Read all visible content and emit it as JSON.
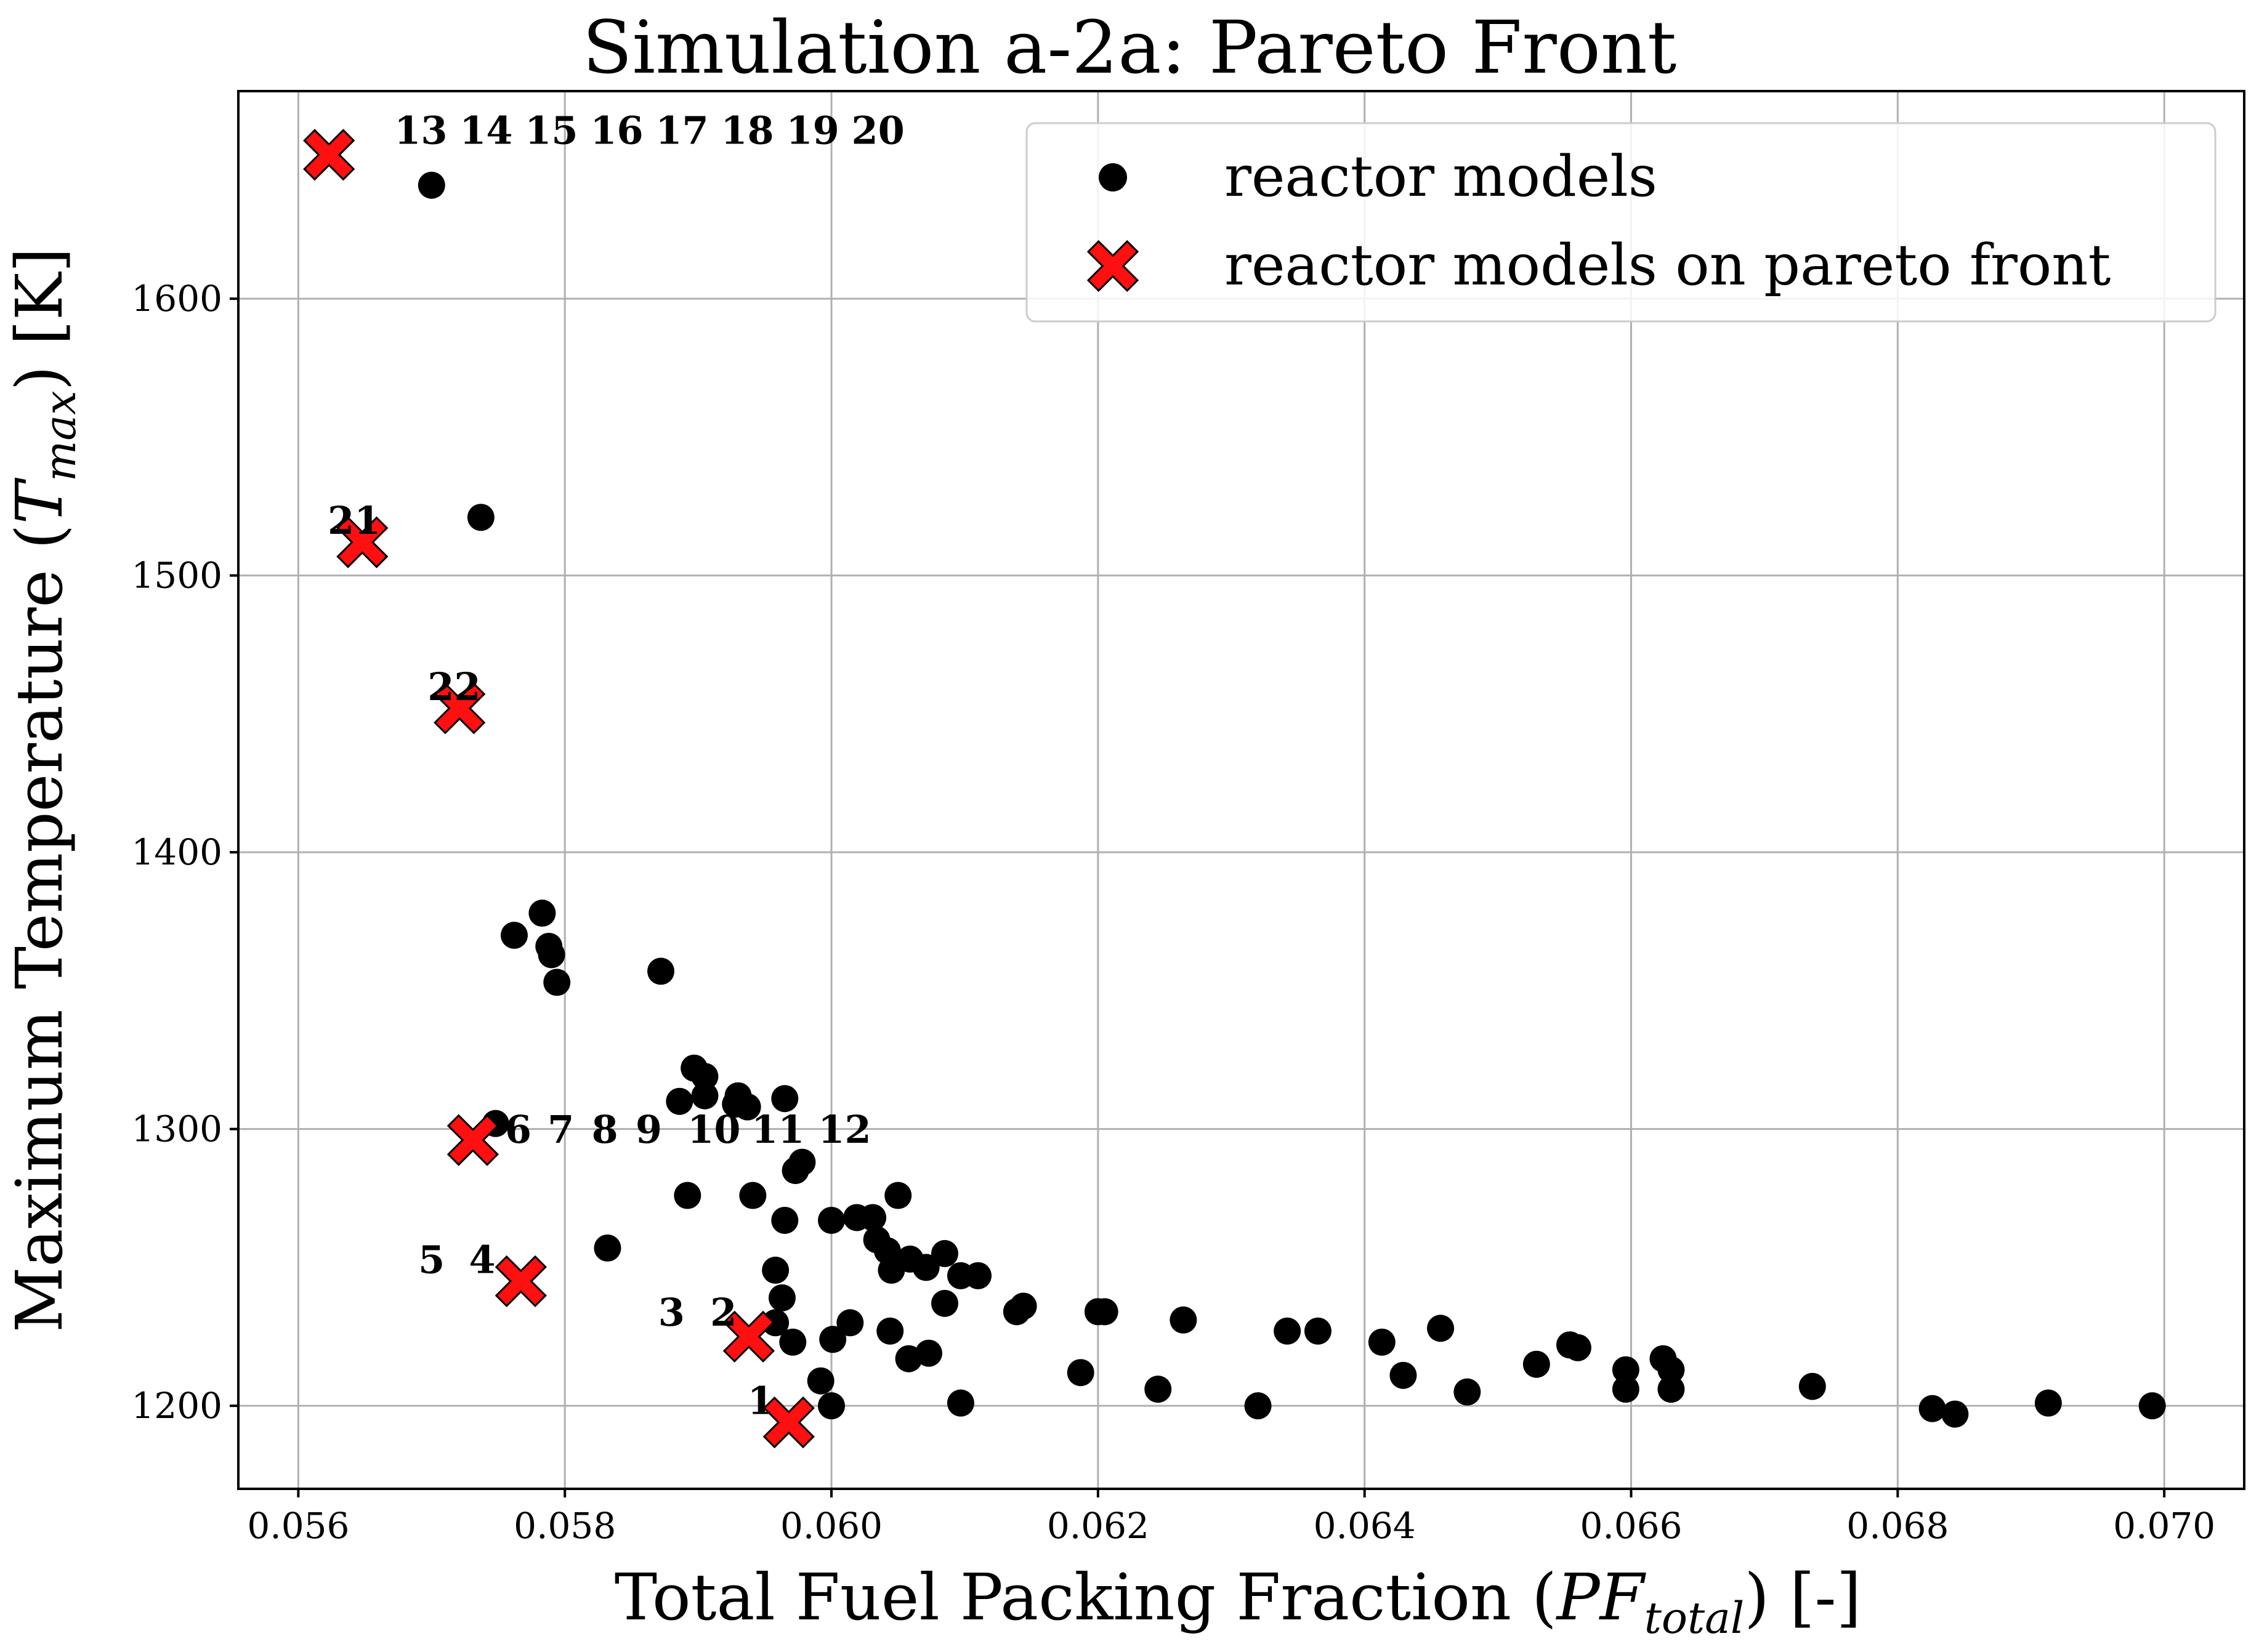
{
  "chart_data": {
    "type": "scatter",
    "title": "Simulation a-2a: Pareto Front",
    "xlabel_parts": [
      "Total Fuel Packing Fraction (",
      "PF",
      "total",
      ") [-]"
    ],
    "ylabel_parts": [
      "Maximum Temperature (",
      "T",
      "max",
      ") [K]"
    ],
    "xlim": [
      0.05555,
      0.0706
    ],
    "ylim": [
      1170,
      1675
    ],
    "xticks": [
      0.056,
      0.058,
      0.06,
      0.062,
      0.064,
      0.066,
      0.068,
      0.07
    ],
    "xtick_labels": [
      "0.056",
      "0.058",
      "0.060",
      "0.062",
      "0.064",
      "0.066",
      "0.068",
      "0.070"
    ],
    "yticks": [
      1200,
      1300,
      1400,
      1500,
      1600
    ],
    "ytick_labels": [
      "1200",
      "1300",
      "1400",
      "1500",
      "1600"
    ],
    "grid": true,
    "legend": {
      "position": "top-right",
      "entries": [
        "reactor models",
        "reactor models on pareto front"
      ]
    },
    "colors": {
      "models": "#000000",
      "pareto": "#ff1010",
      "pareto_edge": "#000000"
    },
    "series": [
      {
        "name": "reactor models",
        "marker": "circle",
        "points": [
          [
            0.057,
            1641
          ],
          [
            0.05737,
            1521
          ],
          [
            0.05783,
            1378
          ],
          [
            0.05762,
            1370
          ],
          [
            0.05788,
            1366
          ],
          [
            0.0579,
            1363
          ],
          [
            0.05794,
            1353
          ],
          [
            0.05872,
            1357
          ],
          [
            0.05748,
            1302
          ],
          [
            0.05832,
            1257
          ],
          [
            0.05897,
            1322
          ],
          [
            0.05905,
            1319
          ],
          [
            0.05886,
            1310
          ],
          [
            0.05905,
            1312
          ],
          [
            0.0593,
            1312
          ],
          [
            0.05928,
            1309
          ],
          [
            0.05937,
            1308
          ],
          [
            0.05965,
            1311
          ],
          [
            0.05892,
            1276
          ],
          [
            0.05941,
            1276
          ],
          [
            0.05978,
            1288
          ],
          [
            0.05973,
            1285
          ],
          [
            0.05965,
            1267
          ],
          [
            0.06,
            1267
          ],
          [
            0.06019,
            1268
          ],
          [
            0.06031,
            1268
          ],
          [
            0.0605,
            1276
          ],
          [
            0.06034,
            1260
          ],
          [
            0.06042,
            1256
          ],
          [
            0.06059,
            1253
          ],
          [
            0.06071,
            1250
          ],
          [
            0.06045,
            1249
          ],
          [
            0.06085,
            1255
          ],
          [
            0.06097,
            1247
          ],
          [
            0.0611,
            1247
          ],
          [
            0.05958,
            1249
          ],
          [
            0.05963,
            1239
          ],
          [
            0.05958,
            1230
          ],
          [
            0.06085,
            1237
          ],
          [
            0.06139,
            1234
          ],
          [
            0.06144,
            1236
          ],
          [
            0.062,
            1234
          ],
          [
            0.06205,
            1234
          ],
          [
            0.06264,
            1231
          ],
          [
            0.06014,
            1230
          ],
          [
            0.06044,
            1227
          ],
          [
            0.06001,
            1224
          ],
          [
            0.05971,
            1223
          ],
          [
            0.06073,
            1219
          ],
          [
            0.06058,
            1217
          ],
          [
            0.05992,
            1209
          ],
          [
            0.06,
            1200
          ],
          [
            0.06097,
            1201
          ],
          [
            0.06187,
            1212
          ],
          [
            0.06245,
            1206
          ],
          [
            0.0632,
            1200
          ],
          [
            0.06342,
            1227
          ],
          [
            0.06365,
            1227
          ],
          [
            0.06413,
            1223
          ],
          [
            0.06457,
            1228
          ],
          [
            0.06429,
            1211
          ],
          [
            0.06477,
            1205
          ],
          [
            0.06529,
            1215
          ],
          [
            0.06554,
            1222
          ],
          [
            0.0656,
            1221
          ],
          [
            0.06596,
            1213
          ],
          [
            0.06596,
            1206
          ],
          [
            0.06624,
            1217
          ],
          [
            0.0663,
            1213
          ],
          [
            0.0663,
            1206
          ],
          [
            0.06736,
            1207
          ],
          [
            0.06826,
            1199
          ],
          [
            0.06843,
            1197
          ],
          [
            0.06913,
            1201
          ],
          [
            0.06991,
            1200
          ]
        ]
      },
      {
        "name": "reactor models on pareto front",
        "marker": "X",
        "points": [
          [
            0.05623,
            1652
          ],
          [
            0.05648,
            1512
          ],
          [
            0.05721,
            1452
          ],
          [
            0.05731,
            1296
          ],
          [
            0.05767,
            1245
          ],
          [
            0.05938,
            1225
          ],
          [
            0.05968,
            1194
          ]
        ]
      }
    ],
    "annotations": [
      {
        "text": "13",
        "x": 0.05672,
        "y": 1656
      },
      {
        "text": "14",
        "x": 0.05721,
        "y": 1656
      },
      {
        "text": "15",
        "x": 0.0577,
        "y": 1656
      },
      {
        "text": "16",
        "x": 0.05819,
        "y": 1656
      },
      {
        "text": "17",
        "x": 0.05868,
        "y": 1656
      },
      {
        "text": "18",
        "x": 0.05917,
        "y": 1656
      },
      {
        "text": "19",
        "x": 0.05966,
        "y": 1656
      },
      {
        "text": "20",
        "x": 0.06015,
        "y": 1656
      },
      {
        "text": "21",
        "x": 0.05622,
        "y": 1515
      },
      {
        "text": "22",
        "x": 0.05697,
        "y": 1455
      },
      {
        "text": "6",
        "x": 0.05755,
        "y": 1295
      },
      {
        "text": "7",
        "x": 0.05787,
        "y": 1295
      },
      {
        "text": "8",
        "x": 0.0582,
        "y": 1295
      },
      {
        "text": "9",
        "x": 0.05853,
        "y": 1295
      },
      {
        "text": "10",
        "x": 0.05892,
        "y": 1295
      },
      {
        "text": "11",
        "x": 0.0594,
        "y": 1295
      },
      {
        "text": "12",
        "x": 0.0599,
        "y": 1295
      },
      {
        "text": "5",
        "x": 0.0569,
        "y": 1248
      },
      {
        "text": "4",
        "x": 0.05728,
        "y": 1248
      },
      {
        "text": "3",
        "x": 0.0587,
        "y": 1229
      },
      {
        "text": "2",
        "x": 0.05909,
        "y": 1229
      },
      {
        "text": "1",
        "x": 0.05937,
        "y": 1197
      }
    ]
  }
}
